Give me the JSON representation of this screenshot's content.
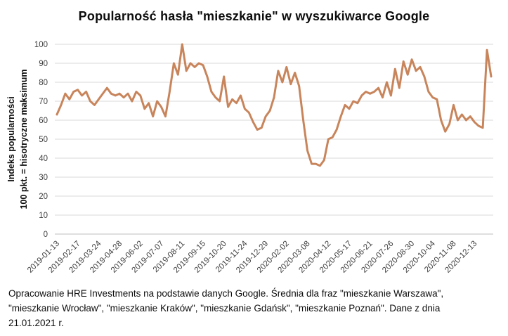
{
  "title": "Popularność hasła \"mieszkanie\" w wyszukiwarce Google",
  "y_axis": {
    "label_line1": "Indeks popularności",
    "label_line2": "100 pkt. = hisotryczne maksimum",
    "ticks": [
      0,
      10,
      20,
      30,
      40,
      50,
      60,
      70,
      80,
      90,
      100
    ]
  },
  "caption": {
    "line1": "Opracowanie HRE Investments na podstawie danych Google. Średnia dla fraz \"mieszkanie Warszawa\",",
    "line2": "\"mieszkanie Wrocław\", \"mieszkanie Kraków\", \"mieszkanie Gdańsk\", \"mieszkanie Poznań\". Dane z dnia",
    "line3": "21.01.2021 r."
  },
  "colors": {
    "line": "#C8855C",
    "gridline": "#D9D9D9",
    "axis_line": "#BFBFBF",
    "tick_text": "#404040",
    "title_text": "#0d0d0d"
  },
  "chart_data": {
    "type": "line",
    "title": "Popularność hasła \"mieszkanie\" w wyszukiwarce Google",
    "ylabel": "Indeks popularności 100 pkt. = hisotryczne maksimum",
    "xlabel": "",
    "ylim": [
      0,
      100
    ],
    "ytick_step": 10,
    "grid": "horizontal",
    "legend": "none",
    "x_is_weekly_dates": true,
    "x_tick_labels": [
      "2019-01-13",
      "2019-02-17",
      "2019-03-24",
      "2019-04-28",
      "2019-06-02",
      "2019-07-07",
      "2019-08-11",
      "2019-09-15",
      "2019-10-20",
      "2019-11-24",
      "2019-12-29",
      "2020-02-02",
      "2020-03-08",
      "2020-04-12",
      "2020-05-17",
      "2020-06-21",
      "2020-07-26",
      "2020-08-30",
      "2020-10-04",
      "2020-11-08",
      "2020-12-13"
    ],
    "points_per_tick": 5,
    "n_points": 105,
    "values": [
      63,
      68,
      74,
      71,
      75,
      76,
      73,
      75,
      70,
      68,
      71,
      74,
      77,
      74,
      73,
      74,
      72,
      74,
      70,
      75,
      73,
      66,
      69,
      62,
      70,
      67,
      62,
      75,
      90,
      84,
      100,
      86,
      90,
      88,
      90,
      89,
      83,
      75,
      72,
      70,
      83,
      67,
      71,
      69,
      73,
      66,
      64,
      59,
      55,
      56,
      62,
      65,
      72,
      86,
      80,
      88,
      79,
      85,
      78,
      60,
      44,
      37,
      37,
      36,
      39,
      50,
      51,
      55,
      62,
      68,
      66,
      70,
      69,
      73,
      75,
      74,
      75,
      77,
      72,
      80,
      73,
      87,
      77,
      91,
      84,
      92,
      86,
      88,
      83,
      75,
      72,
      71,
      60,
      54,
      58,
      68,
      60,
      63,
      60,
      62,
      59,
      57,
      56,
      97,
      83
    ]
  }
}
